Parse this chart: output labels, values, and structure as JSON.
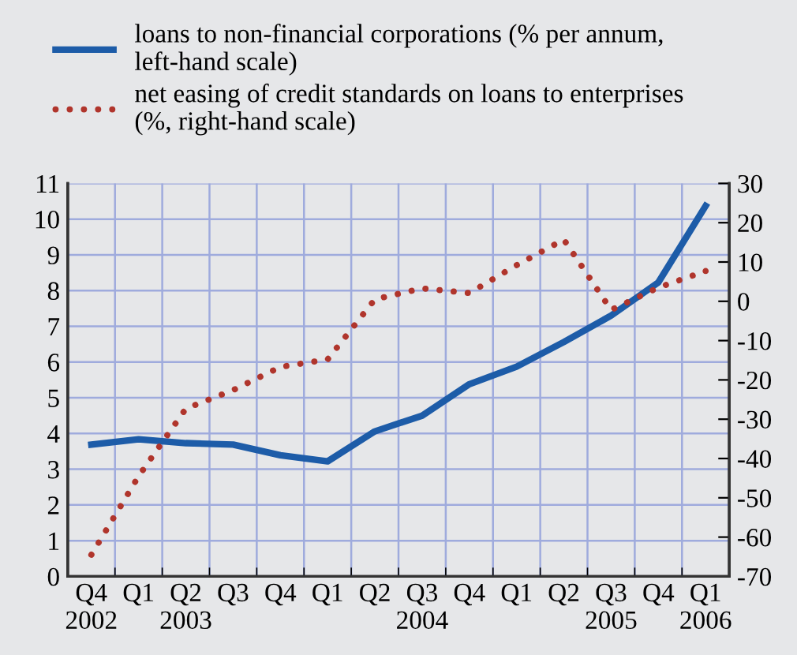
{
  "chart_data": {
    "type": "line",
    "legend": "top left",
    "grid": true,
    "ylim": [
      0,
      11
    ],
    "y2lim": [
      -70,
      30
    ],
    "yticks": [
      0,
      1,
      2,
      3,
      4,
      5,
      6,
      7,
      8,
      9,
      10,
      11
    ],
    "y2ticks": [
      -70,
      -60,
      -50,
      -40,
      -30,
      -20,
      -10,
      0,
      10,
      20,
      30
    ],
    "categories": [
      "Q4\n2002",
      "Q1",
      "Q2\n2003",
      "Q3",
      "Q4",
      "Q1",
      "Q2",
      "Q3\n2004",
      "Q4",
      "Q1",
      "Q2",
      "Q3\n2005",
      "Q4",
      "Q1\n2006"
    ],
    "series": [
      {
        "name": "loans to non-financial corporations (% per annum,\nleft-hand scale)",
        "color": "#1d5ca8",
        "line_style": "solid",
        "values": [
          3.69,
          3.84,
          3.73,
          3.69,
          3.39,
          3.22,
          4.06,
          4.5,
          5.38,
          5.87,
          6.56,
          7.3,
          8.23,
          10.37
        ]
      },
      {
        "name": "net easing of credit standards on loans to enterprises\n(%, right-hand scale)",
        "color": "#b0352c",
        "line_style": "dotted",
        "axis": "y2",
        "values": [
          -64.5,
          -44.5,
          -27.3,
          -22.6,
          -16.7,
          -14.8,
          0.5,
          3.3,
          2.1,
          9.2,
          15.7,
          -2.2,
          3.5,
          7.7
        ]
      }
    ]
  }
}
